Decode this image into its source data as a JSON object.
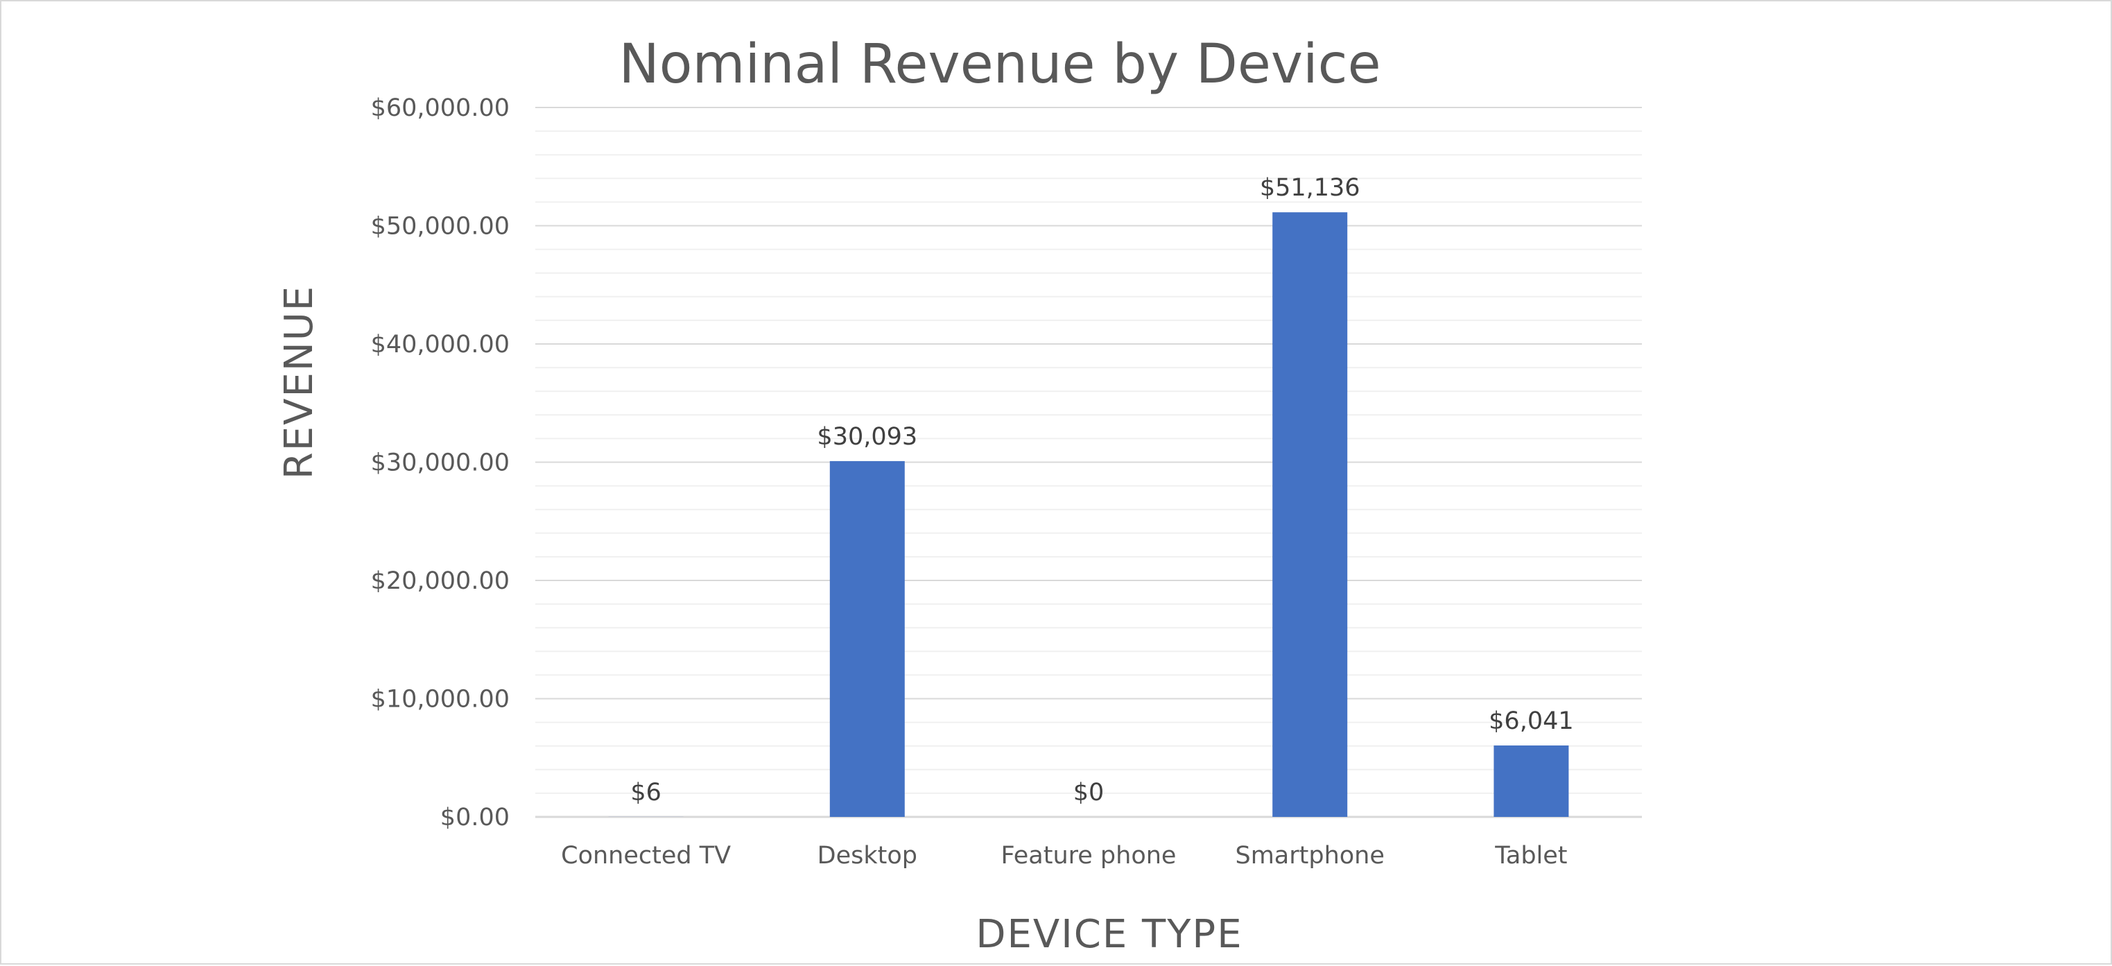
{
  "chart_data": {
    "type": "bar",
    "title": "Nominal Revenue by Device",
    "xlabel": "DEVICE TYPE",
    "ylabel": "REVENUE",
    "categories": [
      "Connected TV",
      "Desktop",
      "Feature phone",
      "Smartphone",
      "Tablet"
    ],
    "values": [
      6,
      30093,
      0,
      51136,
      6041
    ],
    "data_labels": [
      "$6",
      "$30,093",
      "$0",
      "$51,136",
      "$6,041"
    ],
    "ylim": [
      0,
      60000
    ],
    "y_ticks": [
      0,
      10000,
      20000,
      30000,
      40000,
      50000,
      60000
    ],
    "y_tick_labels": [
      "$0.00",
      "$10,000.00",
      "$20,000.00",
      "$30,000.00",
      "$40,000.00",
      "$50,000.00",
      "$60,000.00"
    ],
    "minor_step": 2000,
    "grid": true,
    "legend": "none",
    "bar_color": "#4472c4"
  }
}
